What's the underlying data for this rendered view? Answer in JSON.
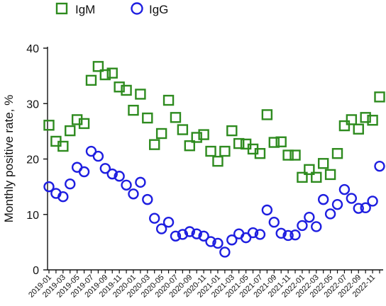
{
  "chart_data": {
    "type": "scatter",
    "title": "",
    "xlabel": "",
    "ylabel": "Monthly positive rate, %",
    "ylim": [
      0,
      40
    ],
    "yticks": [
      0,
      10,
      20,
      30,
      40
    ],
    "x": [
      "2019-01",
      "2019-02",
      "2019-03",
      "2019-04",
      "2019-05",
      "2019-06",
      "2019-07",
      "2019-08",
      "2019-09",
      "2019-10",
      "2019-11",
      "2019-12",
      "2020-01",
      "2020-02",
      "2020-03",
      "2020-04",
      "2020-05",
      "2020-06",
      "2020-07",
      "2020-08",
      "2020-09",
      "2020-10",
      "2020-11",
      "2020-12",
      "2021-01",
      "2021-02",
      "2021-03",
      "2021-04",
      "2021-05",
      "2021-06",
      "2021-07",
      "2021-08",
      "2021-09",
      "2021-10",
      "2021-11",
      "2021-12",
      "2022-01",
      "2022-02",
      "2022-03",
      "2022-04",
      "2022-05",
      "2022-06",
      "2022-07",
      "2022-08",
      "2022-09",
      "2022-10",
      "2022-11",
      "2022-12"
    ],
    "xtick_labels": [
      "2019-01",
      "2019-03",
      "2019-05",
      "2019-07",
      "2019-09",
      "2019-11",
      "2020-01",
      "2020-03",
      "2020-05",
      "2020-07",
      "2020-09",
      "2020-11",
      "2021-01",
      "2021-03",
      "2021-05",
      "2021-07",
      "2021-09",
      "2021-11",
      "2022-01",
      "2022-03",
      "2022-05",
      "2022-07",
      "2022-09",
      "2022-11"
    ],
    "series": [
      {
        "name": "IgM",
        "marker": "square",
        "color": "#2e8b1f",
        "values": [
          26.1,
          23.2,
          22.3,
          25.1,
          27.1,
          26.4,
          34.2,
          36.7,
          35.2,
          35.5,
          33.0,
          32.4,
          28.8,
          31.7,
          27.4,
          22.6,
          24.6,
          30.6,
          27.5,
          25.3,
          22.4,
          23.9,
          24.4,
          21.4,
          19.6,
          21.4,
          25.1,
          22.8,
          22.7,
          21.8,
          21.0,
          28.0,
          23.0,
          23.1,
          20.7,
          20.7,
          16.7,
          18.1,
          16.7,
          19.2,
          17.2,
          21.0,
          26.0,
          27.1,
          25.4,
          27.5,
          27.0,
          31.2
        ]
      },
      {
        "name": "IgG",
        "marker": "circle",
        "color": "#1e1ee0",
        "values": [
          15.0,
          13.8,
          13.2,
          15.5,
          18.5,
          17.7,
          21.4,
          20.5,
          18.3,
          17.3,
          16.9,
          15.3,
          13.7,
          15.8,
          12.7,
          9.3,
          7.4,
          8.6,
          6.1,
          6.4,
          6.9,
          6.5,
          6.1,
          5.1,
          4.8,
          3.2,
          5.4,
          6.5,
          5.8,
          6.7,
          6.4,
          10.8,
          8.6,
          6.6,
          6.2,
          6.3,
          8.0,
          9.5,
          7.8,
          12.7,
          10.1,
          11.8,
          14.5,
          12.9,
          11.1,
          11.2,
          12.4,
          18.7
        ]
      }
    ],
    "legend": {
      "position": "top"
    },
    "grid": false
  }
}
